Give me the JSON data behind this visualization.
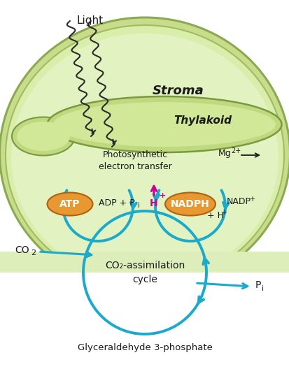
{
  "bg_color": "#ffffff",
  "stroma_outer_color": "#c8dc8c",
  "stroma_outer_border": "#8aaa50",
  "stroma_inner_color": "#d8eeaa",
  "stroma_inner_border": "#a0bc60",
  "thylakoid_color": "#c0d880",
  "thylakoid_border": "#7a9a40",
  "thylakoid_lumen": "#d0e898",
  "bottom_bg_color": "#ddeebb",
  "cycle_color": "#1aaace",
  "atp_color": "#e89830",
  "atp_border": "#b06010",
  "text_color": "#1a1a1a",
  "magenta_color": "#cc0099",
  "arrow_color": "#1a1a1a",
  "title_stroma": "Stroma",
  "title_thylakoid": "Thylakoid",
  "label_light": "Light",
  "label_photo": "Photosynthetic\nelectron transfer",
  "label_mg": "Mg",
  "label_mg_sup": "2+",
  "label_atp": "ATP",
  "label_adp": "ADP + P",
  "label_adp_sub": "i",
  "label_nadph": "NADPH",
  "label_nadp": "NADP",
  "label_nadp_sup": "+",
  "label_hplus": "H",
  "label_hplus_sup": "+",
  "label_hplus2": "+ H",
  "label_hplus2_sup": "+",
  "label_co2": "CO",
  "label_co2_sub": "2",
  "label_pi": "P",
  "label_pi_sub": "i",
  "label_cycle": "CO₂-assimilation\ncycle",
  "label_glyc": "Glyceraldehyde 3-phosphate"
}
